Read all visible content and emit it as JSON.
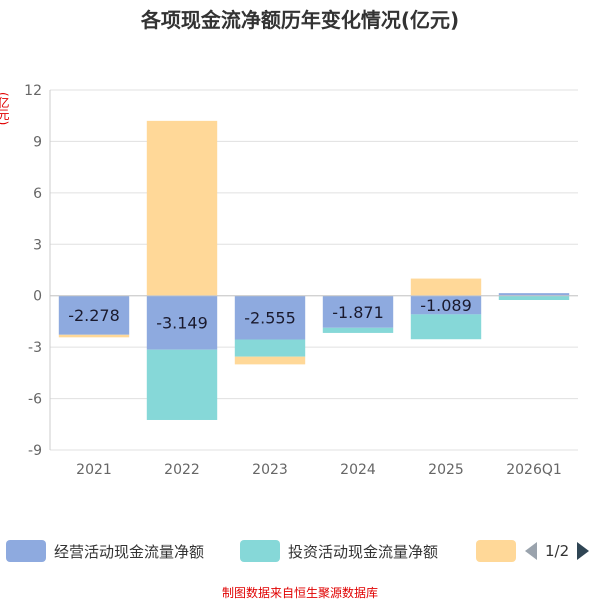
{
  "title": "各项现金流净额历年变化情况(亿元)",
  "unit_label": "(亿元)",
  "footer": "制图数据来自恒生聚源数据库",
  "legend": {
    "items": [
      {
        "label": "经营活动现金流量净额",
        "color": "#8eaadf"
      },
      {
        "label": "投资活动现金流量净额",
        "color": "#86d8d8"
      },
      {
        "label": "",
        "color": "#ffd898"
      }
    ],
    "page": "1/2"
  },
  "chart_data": {
    "type": "bar",
    "stacked": true,
    "categories": [
      "2021",
      "2022",
      "2023",
      "2024",
      "2025",
      "2026Q1"
    ],
    "series": [
      {
        "name": "经营活动现金流量净额",
        "color": "#8eaadf",
        "values": [
          -2.278,
          -3.149,
          -2.555,
          -1.871,
          -1.089,
          0.15
        ]
      },
      {
        "name": "投资活动现金流量净额",
        "color": "#86d8d8",
        "values": [
          0,
          -4.1,
          -1.0,
          -0.3,
          -1.45,
          -0.25
        ]
      },
      {
        "name": "",
        "color": "#ffd898",
        "values": [
          -0.15,
          10.2,
          -0.45,
          0,
          1.0,
          0
        ]
      }
    ],
    "data_labels": [
      "-2.278",
      "-3.149",
      "-2.555",
      "-1.871",
      "-1.089",
      ""
    ],
    "y_ticks": [
      12,
      9,
      6,
      3,
      0,
      -3,
      -6,
      -9
    ],
    "ylim": [
      -9,
      12
    ],
    "grid": true
  }
}
